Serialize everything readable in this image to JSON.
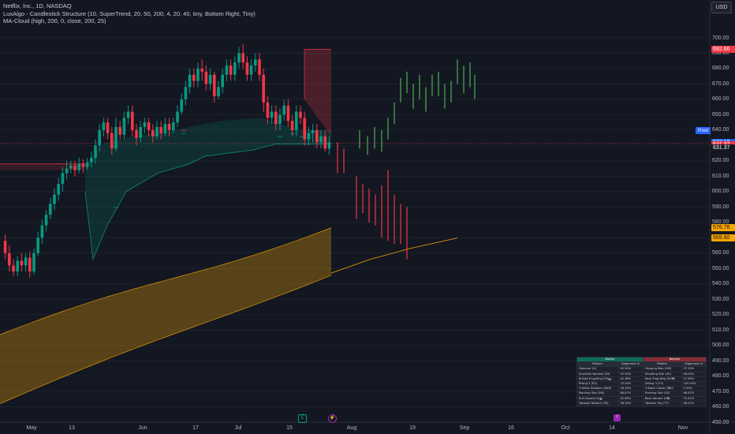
{
  "header": {
    "symbol_line": "Netflix, Inc., 1D, NASDAQ",
    "indicator1": "LuxAlgo - Candlestick Structure (10, SuperTrend, 20, 50, 200, 4, 20, 40, tiny, Bottom Right, Tiny)",
    "indicator2": "MA-Cloud (high, 200, 0, close, 200, 25)"
  },
  "currency": "USD",
  "price_axis": {
    "min": 450,
    "max": 710,
    "ticks": [
      "700.00",
      "690.00",
      "680.00",
      "670.00",
      "660.00",
      "650.00",
      "640.00",
      "630.00",
      "620.00",
      "610.00",
      "600.00",
      "590.00",
      "580.00",
      "570.00",
      "560.00",
      "550.00",
      "540.00",
      "530.00",
      "520.00",
      "510.00",
      "500.00",
      "490.00",
      "480.00",
      "470.00",
      "460.00",
      "450.00"
    ]
  },
  "price_badges": [
    {
      "label": "692.66",
      "value": 692.66,
      "color": "#f23645"
    },
    {
      "label": "632.18",
      "value": 632.18,
      "color": "#2962ff"
    },
    {
      "label": "631.37",
      "value": 630.2,
      "color": "#f23645"
    },
    {
      "label": "631.37",
      "value": 628.4,
      "color": "#131722"
    },
    {
      "label": "576.76",
      "value": 576.76,
      "color": "#f7a600"
    },
    {
      "label": "569.80",
      "value": 569.8,
      "color": "#f7a600"
    }
  ],
  "post_label": "Post",
  "time_axis": [
    "May",
    "13",
    "Jun",
    "17",
    "Jul",
    "15",
    "Aug",
    "19",
    "Sep",
    "16",
    "Oct",
    "14",
    "Nov"
  ],
  "stats_table": {
    "bullish_title": "Bullish",
    "bearish_title": "Bearish",
    "col_pattern": "Pattern",
    "col_alignment": "Alignment %",
    "rows": [
      [
        "Hammer (H)",
        "62.50%",
        "Hanging Man (HM)",
        "37.50%"
      ],
      [
        "Inverted Hammer (IH)",
        "52.00%",
        "Shooting Star (SS)",
        "48.00%"
      ],
      [
        "Bullish Engulfing (EG▲)",
        "42.38%",
        "Bear Engulfing (EG▼)",
        "57.69%"
      ],
      [
        "Rising 3 (R3)",
        "75.00%",
        "Falling 3 (F3)",
        "100.00%"
      ],
      [
        "3 White Soldiers (3WS)",
        "33.33%",
        "3 Black Crows (3BC)",
        "0.00%"
      ],
      [
        "Morning Star (MS)",
        "66.67%",
        "Evening Star (ES)",
        "66.67%"
      ],
      [
        "Bull Harami (H▲)",
        "42.86%",
        "Bear Harami (H▼)",
        "75.51%"
      ],
      [
        "Tweezer Bottom (TB)",
        "58.33%",
        "Tweezer Top (TT)",
        "58.21%"
      ]
    ]
  },
  "colors": {
    "bull": "#089981",
    "bear": "#f23645",
    "bg": "#131722",
    "cloud": "#f7a600",
    "proj_bull": "#4caf50",
    "proj_bear": "#f23645"
  },
  "chart_data": {
    "type": "candlestick",
    "candles": [
      [
        568,
        560,
        572,
        556
      ],
      [
        560,
        552,
        565,
        548
      ],
      [
        552,
        548,
        556,
        545
      ],
      [
        548,
        555,
        558,
        545
      ],
      [
        555,
        552,
        560,
        548
      ],
      [
        552,
        557,
        560,
        548
      ],
      [
        557,
        548,
        561,
        544
      ],
      [
        548,
        560,
        563,
        546
      ],
      [
        560,
        570,
        574,
        558
      ],
      [
        570,
        578,
        582,
        566
      ],
      [
        578,
        585,
        588,
        574
      ],
      [
        585,
        592,
        596,
        582
      ],
      [
        592,
        598,
        602,
        588
      ],
      [
        598,
        605,
        609,
        594
      ],
      [
        605,
        612,
        616,
        600
      ],
      [
        612,
        615,
        620,
        608
      ],
      [
        615,
        617,
        620,
        612
      ],
      [
        617,
        614,
        620,
        610
      ],
      [
        614,
        618,
        622,
        612
      ],
      [
        618,
        616,
        621,
        612
      ],
      [
        616,
        619,
        622,
        614
      ],
      [
        619,
        622,
        626,
        616
      ],
      [
        622,
        630,
        634,
        618
      ],
      [
        630,
        640,
        644,
        626
      ],
      [
        640,
        645,
        648,
        636
      ],
      [
        645,
        638,
        648,
        634
      ],
      [
        638,
        628,
        642,
        624
      ],
      [
        628,
        642,
        648,
        626
      ],
      [
        642,
        637,
        646,
        634
      ],
      [
        637,
        648,
        652,
        634
      ],
      [
        648,
        652,
        656,
        644
      ],
      [
        652,
        640,
        656,
        636
      ],
      [
        640,
        635,
        644,
        630
      ],
      [
        635,
        642,
        646,
        632
      ],
      [
        642,
        645,
        648,
        638
      ],
      [
        645,
        640,
        648,
        636
      ],
      [
        640,
        636,
        644,
        632
      ],
      [
        636,
        642,
        646,
        634
      ],
      [
        642,
        638,
        646,
        634
      ],
      [
        638,
        644,
        648,
        636
      ],
      [
        644,
        640,
        648,
        636
      ],
      [
        640,
        645,
        648,
        638
      ],
      [
        645,
        652,
        656,
        642
      ],
      [
        652,
        660,
        664,
        650
      ],
      [
        660,
        668,
        672,
        656
      ],
      [
        668,
        676,
        680,
        664
      ],
      [
        676,
        672,
        680,
        668
      ],
      [
        672,
        680,
        684,
        668
      ],
      [
        680,
        678,
        686,
        672
      ],
      [
        678,
        670,
        682,
        666
      ],
      [
        670,
        676,
        680,
        666
      ],
      [
        676,
        662,
        678,
        658
      ],
      [
        662,
        668,
        672,
        660
      ],
      [
        668,
        676,
        680,
        664
      ],
      [
        676,
        682,
        686,
        672
      ],
      [
        682,
        676,
        686,
        672
      ],
      [
        676,
        684,
        688,
        672
      ],
      [
        684,
        690,
        694,
        680
      ],
      [
        690,
        684,
        696,
        680
      ],
      [
        684,
        676,
        688,
        672
      ],
      [
        676,
        682,
        686,
        672
      ],
      [
        682,
        686,
        690,
        678
      ],
      [
        686,
        676,
        690,
        672
      ],
      [
        676,
        658,
        680,
        652
      ],
      [
        658,
        648,
        662,
        644
      ],
      [
        648,
        652,
        656,
        644
      ],
      [
        652,
        644,
        656,
        640
      ],
      [
        644,
        650,
        654,
        640
      ],
      [
        650,
        656,
        660,
        646
      ],
      [
        656,
        646,
        660,
        642
      ],
      [
        646,
        640,
        650,
        636
      ],
      [
        640,
        652,
        656,
        636
      ],
      [
        652,
        648,
        656,
        644
      ],
      [
        648,
        634,
        652,
        630
      ],
      [
        634,
        638,
        642,
        630
      ],
      [
        638,
        640,
        644,
        632
      ],
      [
        640,
        632,
        644,
        628
      ],
      [
        632,
        636,
        640,
        628
      ],
      [
        636,
        628,
        640,
        626
      ],
      [
        628,
        632,
        636,
        624
      ]
    ]
  }
}
